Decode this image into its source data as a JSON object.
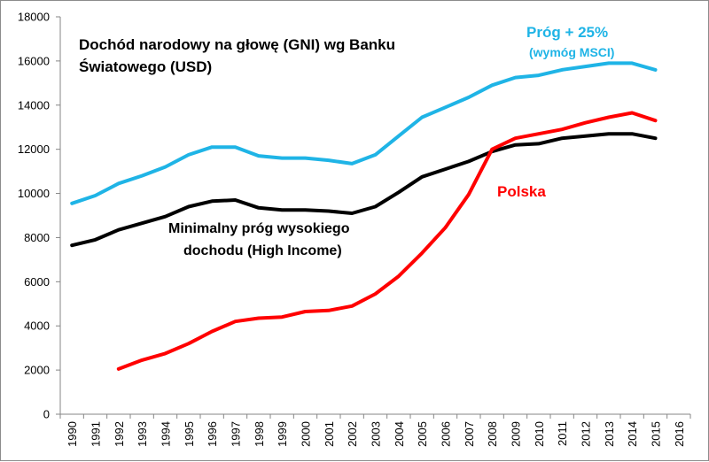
{
  "chart_data": {
    "type": "line",
    "title_line1": "Dochód narodowy na głowę (GNI) wg Banku",
    "title_line2": "Światowego (USD)",
    "categories": [
      "1990",
      "1991",
      "1992",
      "1993",
      "1994",
      "1995",
      "1996",
      "1997",
      "1998",
      "1999",
      "2000",
      "2001",
      "2002",
      "2003",
      "2004",
      "2005",
      "2006",
      "2007",
      "2008",
      "2009",
      "2010",
      "2011",
      "2012",
      "2013",
      "2014",
      "2015",
      "2016"
    ],
    "y_ticks": [
      "0",
      "2000",
      "4000",
      "6000",
      "8000",
      "10000",
      "12000",
      "14000",
      "16000",
      "18000"
    ],
    "ylim": [
      0,
      18000
    ],
    "grid": false,
    "series": [
      {
        "name_line1": "Próg + 25%",
        "name_line2": "(wymóg MSCI)",
        "color": "#1fb4e6",
        "values": [
          9550,
          9900,
          10450,
          10800,
          11200,
          11750,
          12100,
          12100,
          11700,
          11600,
          11600,
          11500,
          11350,
          11750,
          12600,
          13450,
          13900,
          14350,
          14900,
          15250,
          15350,
          15600,
          15750,
          15900,
          15900,
          15600,
          null
        ]
      },
      {
        "name_line1": "Minimalny próg wysokiego",
        "name_line2": "dochodu  (High Income)",
        "color": "#000000",
        "values": [
          7650,
          7900,
          8350,
          8650,
          8950,
          9400,
          9650,
          9700,
          9350,
          9250,
          9250,
          9200,
          9100,
          9400,
          10050,
          10750,
          11100,
          11450,
          11900,
          12200,
          12250,
          12500,
          12600,
          12700,
          12700,
          12500,
          null
        ]
      },
      {
        "name_line1": "Polska",
        "name_line2": "",
        "color": "#ff0000",
        "values": [
          null,
          null,
          2050,
          2450,
          2750,
          3200,
          3750,
          4200,
          4350,
          4400,
          4650,
          4700,
          4900,
          5450,
          6250,
          7300,
          8450,
          9950,
          12000,
          12500,
          12700,
          12900,
          13200,
          13450,
          13650,
          13300,
          null
        ]
      }
    ]
  }
}
